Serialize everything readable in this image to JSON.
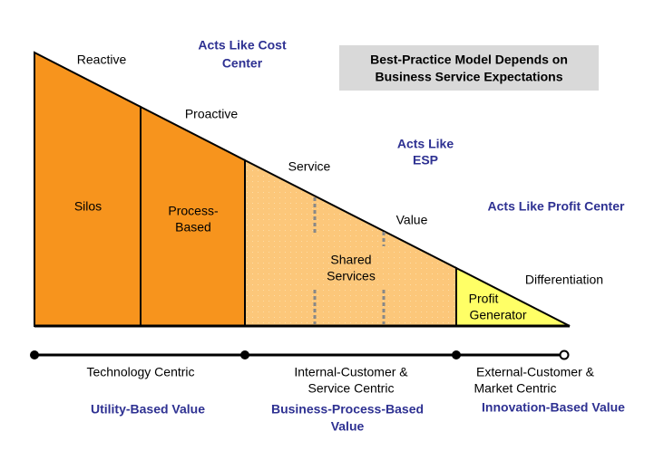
{
  "title_box": [
    "Best-Practice Model Depends on",
    "Business Service Expectations"
  ],
  "curve_labels": [
    "Reactive",
    "Proactive",
    "Service",
    "Value",
    "Differentiation"
  ],
  "roles": [
    [
      "Acts Like Cost",
      "Center"
    ],
    [
      "Acts Like",
      "ESP"
    ],
    [
      "Acts Like Profit Center"
    ]
  ],
  "segments": [
    [
      "Silos"
    ],
    [
      "Process-",
      "Based"
    ],
    [
      "Shared",
      "Services"
    ],
    [
      "Profit",
      "Generator"
    ]
  ],
  "axis_groups": [
    {
      "focus": [
        "Technology Centric"
      ],
      "value": [
        "Utility-Based Value"
      ]
    },
    {
      "focus": [
        "Internal-Customer &",
        "Service Centric"
      ],
      "value": [
        "Business-Process-Based",
        "Value"
      ]
    },
    {
      "focus": [
        "External-Customer &",
        "Market Centric"
      ],
      "value": [
        "Innovation-Based Value"
      ]
    }
  ]
}
